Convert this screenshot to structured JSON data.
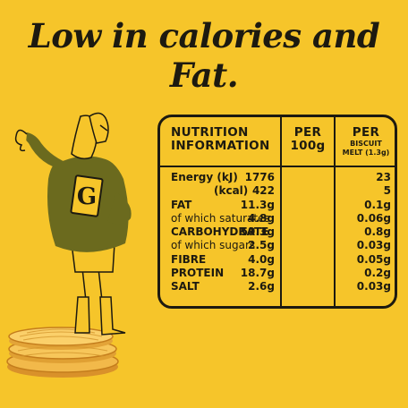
{
  "headline": "Low in calories and Fat.",
  "colors": {
    "background": "#f6c52a",
    "ink": "#1d1a10",
    "sweater": "#6b6a1e"
  },
  "figure": {
    "badge_letter": "G"
  },
  "table": {
    "header": {
      "title_line1": "NUTRITION",
      "title_line2": "INFORMATION",
      "per100_line1": "PER",
      "per100_line2": "100g",
      "perbiscuit_line1": "PER",
      "perbiscuit_line2": "BISCUIT",
      "perbiscuit_line3": "MELT (1.3g)"
    },
    "rows": [
      {
        "label": "Energy (kJ)",
        "per100": "1776",
        "perbiscuit": "23"
      },
      {
        "label": "(kcal)",
        "per100": "422",
        "perbiscuit": "5"
      },
      {
        "label": "FAT",
        "per100": "11.3g",
        "perbiscuit": "0.1g"
      },
      {
        "label": "of which saturates",
        "per100": "4.8g",
        "perbiscuit": "0.06g"
      },
      {
        "label": "CARBOHYDRATE",
        "per100": "59.3g",
        "perbiscuit": "0.8g"
      },
      {
        "label": "of which sugars",
        "per100": "2.5g",
        "perbiscuit": "0.03g"
      },
      {
        "label": "FIBRE",
        "per100": "4.0g",
        "perbiscuit": "0.05g"
      },
      {
        "label": "PROTEIN",
        "per100": "18.7g",
        "perbiscuit": "0.2g"
      },
      {
        "label": "SALT",
        "per100": "2.6g",
        "perbiscuit": "0.03g"
      }
    ]
  }
}
